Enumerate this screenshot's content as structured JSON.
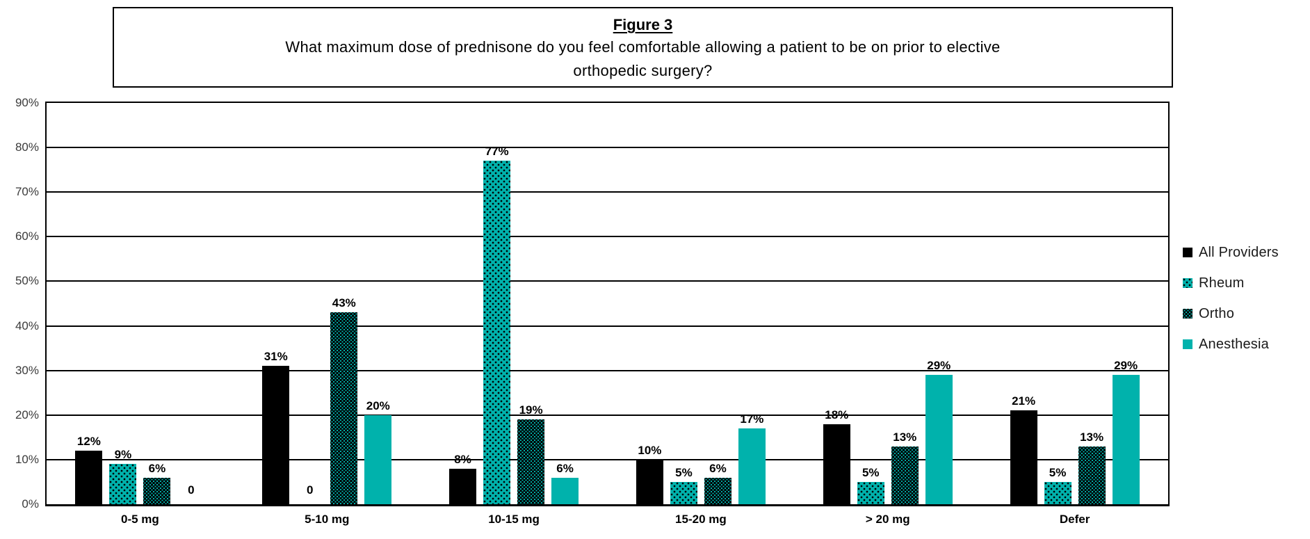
{
  "figure": {
    "title": "Figure 3",
    "subtitle_line1": "What maximum dose of prednisone do you feel comfortable allowing a patient to be on prior to elective",
    "subtitle_line2": "orthopedic surgery?"
  },
  "chart_data": {
    "type": "bar",
    "title": "Figure 3",
    "question": "What maximum dose of prednisone do you feel comfortable allowing a patient to be on prior to elective orthopedic surgery?",
    "categories": [
      "0-5 mg",
      "5-10 mg",
      "10-15 mg",
      "15-20 mg",
      "> 20 mg",
      "Defer"
    ],
    "series": [
      {
        "name": "All Providers",
        "pattern": "solid-black",
        "color": "#000000",
        "values": [
          12,
          31,
          8,
          10,
          18,
          21
        ],
        "labels": [
          "12%",
          "31%",
          "8%",
          "10%",
          "18%",
          "21%"
        ]
      },
      {
        "name": "Rheum",
        "pattern": "teal-black-dots",
        "color": "#00b2ac",
        "values": [
          9,
          0,
          77,
          5,
          5,
          5
        ],
        "labels": [
          "9%",
          "0",
          "77%",
          "5%",
          "5%",
          "5%"
        ]
      },
      {
        "name": "Ortho",
        "pattern": "black-teal-dots",
        "color": "#000000",
        "values": [
          6,
          43,
          19,
          6,
          13,
          13
        ],
        "labels": [
          "6%",
          "43%",
          "19%",
          "6%",
          "13%",
          "13%"
        ]
      },
      {
        "name": "Anesthesia",
        "pattern": "solid-teal",
        "color": "#00b2ac",
        "values": [
          0,
          20,
          6,
          17,
          29,
          29
        ],
        "labels": [
          "0",
          "20%",
          "6%",
          "17%",
          "29%",
          "29%"
        ]
      }
    ],
    "ylim": [
      0,
      90
    ],
    "ytick_step": 10,
    "ytick_labels": [
      "0%",
      "10%",
      "20%",
      "30%",
      "40%",
      "50%",
      "60%",
      "70%",
      "80%",
      "90%"
    ],
    "grid": true,
    "legend_position": "right",
    "legend": [
      "All Providers",
      "Rheum",
      "Ortho",
      "Anesthesia"
    ],
    "accent_teal": "#00b2ac",
    "bar_color_black": "#000000"
  }
}
